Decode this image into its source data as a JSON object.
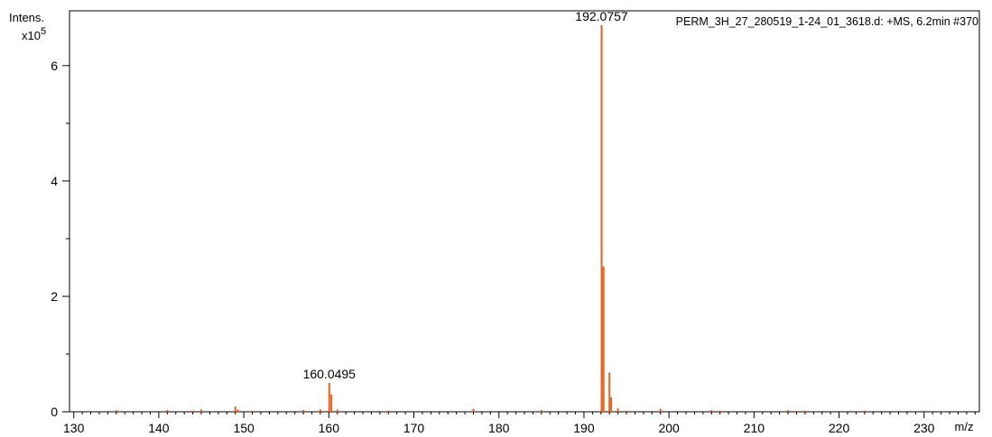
{
  "chart_data": {
    "type": "bar",
    "title": "PERM_3H_27_280519_1-24_01_3618.d: +MS, 6.2min #370",
    "xlabel": "m/z",
    "ylabel_line1": "Intens.",
    "ylabel_line2": "x10",
    "ylabel_exp": "5",
    "xlim": [
      129.5,
      236.5
    ],
    "ylim": [
      0,
      6.95
    ],
    "xticks": [
      130,
      140,
      150,
      160,
      170,
      180,
      190,
      200,
      210,
      220,
      230
    ],
    "yticks": [
      0,
      2,
      4,
      6
    ],
    "color": "#e8601c",
    "peaks": [
      {
        "mz": 135.0,
        "intensity": 0.03
      },
      {
        "mz": 141.0,
        "intensity": 0.03
      },
      {
        "mz": 144.0,
        "intensity": 0.02
      },
      {
        "mz": 145.0,
        "intensity": 0.04
      },
      {
        "mz": 149.0,
        "intensity": 0.09
      },
      {
        "mz": 149.3,
        "intensity": 0.04
      },
      {
        "mz": 151.0,
        "intensity": 0.02
      },
      {
        "mz": 157.0,
        "intensity": 0.03
      },
      {
        "mz": 159.0,
        "intensity": 0.04
      },
      {
        "mz": 160.0495,
        "intensity": 0.5
      },
      {
        "mz": 160.3,
        "intensity": 0.3
      },
      {
        "mz": 161.0,
        "intensity": 0.04
      },
      {
        "mz": 167.0,
        "intensity": 0.02
      },
      {
        "mz": 177.0,
        "intensity": 0.05
      },
      {
        "mz": 185.0,
        "intensity": 0.03
      },
      {
        "mz": 192.0757,
        "intensity": 6.7
      },
      {
        "mz": 192.3,
        "intensity": 2.52
      },
      {
        "mz": 193.0,
        "intensity": 0.68
      },
      {
        "mz": 193.2,
        "intensity": 0.25
      },
      {
        "mz": 194.0,
        "intensity": 0.06
      },
      {
        "mz": 195.0,
        "intensity": 0.02
      },
      {
        "mz": 199.0,
        "intensity": 0.05
      },
      {
        "mz": 205.0,
        "intensity": 0.03
      },
      {
        "mz": 206.0,
        "intensity": 0.02
      },
      {
        "mz": 214.0,
        "intensity": 0.03
      },
      {
        "mz": 215.0,
        "intensity": 0.02
      },
      {
        "mz": 216.0,
        "intensity": 0.02
      },
      {
        "mz": 223.0,
        "intensity": 0.02
      },
      {
        "mz": 230.0,
        "intensity": 0.02
      }
    ],
    "annotations": [
      {
        "text": "192.0757",
        "mz": 192.0757,
        "intensity": 6.7
      },
      {
        "text": "160.0495",
        "mz": 160.0495,
        "intensity": 0.5
      }
    ]
  }
}
